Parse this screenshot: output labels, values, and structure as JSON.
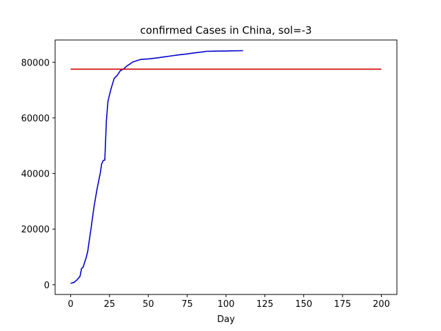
{
  "chart_data": {
    "type": "line",
    "title": "confirmed Cases in China, sol=-3",
    "xlabel": "Day",
    "ylabel": "",
    "xlim": [
      -10,
      210
    ],
    "ylim": [
      -3500,
      88000
    ],
    "xticks": [
      0,
      25,
      50,
      75,
      100,
      125,
      150,
      175,
      200
    ],
    "yticks": [
      0,
      20000,
      40000,
      60000,
      80000
    ],
    "grid": false,
    "legend": "none",
    "series": [
      {
        "color": "#0000cc",
        "x": [
          0,
          2,
          4,
          6,
          7,
          8,
          10,
          11,
          12,
          13,
          15,
          17,
          19,
          20,
          21,
          22,
          23,
          24,
          26,
          28,
          30,
          32,
          34,
          36,
          38,
          40,
          45,
          50,
          55,
          60,
          65,
          70,
          75,
          80,
          85,
          87,
          90,
          95,
          100,
          105,
          111
        ],
        "y": [
          500,
          800,
          1700,
          3000,
          5800,
          6300,
          9800,
          12000,
          16000,
          19800,
          28000,
          34500,
          40000,
          43500,
          44700,
          44800,
          59000,
          66000,
          70500,
          74200,
          75300,
          77000,
          77500,
          78600,
          79300,
          80100,
          81000,
          81200,
          81500,
          81900,
          82300,
          82700,
          83000,
          83400,
          83700,
          83900,
          83950,
          84000,
          84050,
          84100,
          84150
        ]
      },
      {
        "color": "#cc0000",
        "x": [
          0,
          200
        ],
        "y": [
          77500,
          77500
        ]
      }
    ]
  }
}
